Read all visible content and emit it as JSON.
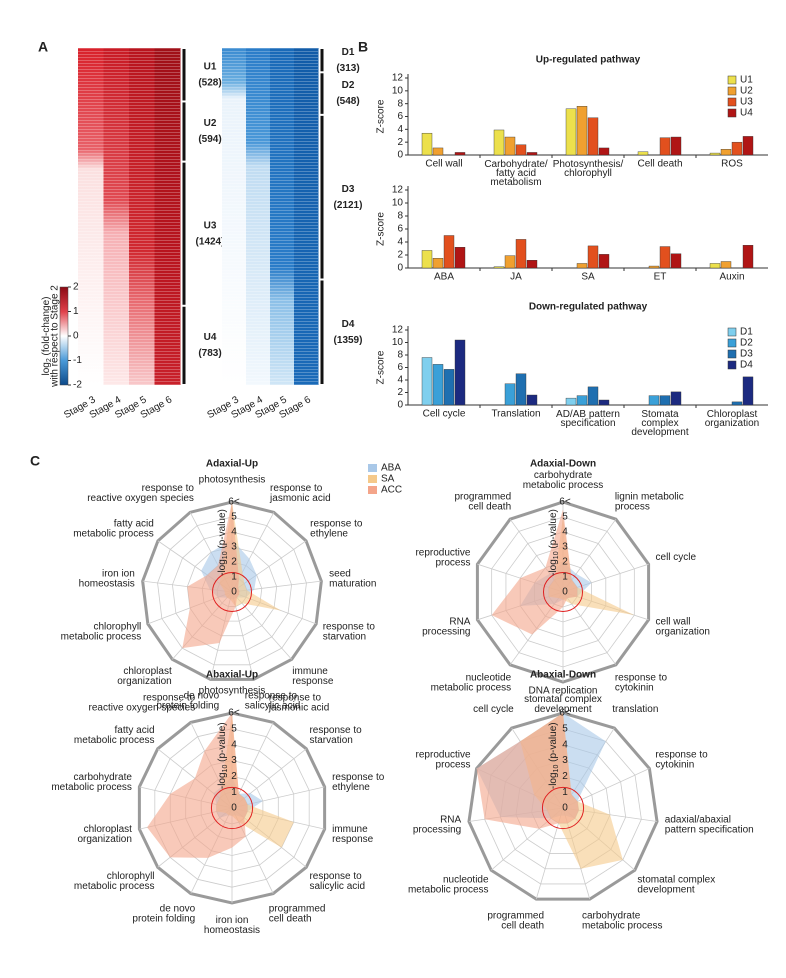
{
  "panels": [
    "A",
    "B",
    "C"
  ],
  "chart_data": [
    {
      "type": "heatmap",
      "color": "#c8102e",
      "label_color": "#d42a3a",
      "categories": [
        "Stage 3",
        "Stage 4",
        "Stage 5",
        "Stage 6"
      ],
      "clusters": [
        {
          "name": "U1",
          "size": 528,
          "size_label": "(528)"
        },
        {
          "name": "U2",
          "size": 594,
          "size_label": "(594)"
        },
        {
          "name": "U3",
          "size": 1424,
          "size_label": "(1424)"
        },
        {
          "name": "U4",
          "size": 783,
          "size_label": "(783)"
        }
      ],
      "colorbar": {
        "lim": [
          -2,
          2
        ],
        "ticks": [
          2,
          1,
          0,
          -1,
          -2
        ],
        "label": [
          "log",
          "2",
          " (fold-change)"
        ],
        "label2": "with respect to Stage 2"
      }
    },
    {
      "type": "heatmap",
      "color": "#1f6fb5",
      "label_color": "#3b4aa0",
      "categories": [
        "Stage 3",
        "Stage 4",
        "Stage 5",
        "Stage 6"
      ],
      "clusters": [
        {
          "name": "D1",
          "size": 313,
          "size_label": "(313)"
        },
        {
          "name": "D2",
          "size": 548,
          "size_label": "(548)"
        },
        {
          "name": "D3",
          "size": 2121,
          "size_label": "(2121)"
        },
        {
          "name": "D4",
          "size": 1359,
          "size_label": "(1359)"
        }
      ]
    },
    {
      "type": "bar",
      "title": "Up-regulated pathway",
      "title_color": "#e0303a",
      "ylabel": "Z-score",
      "label_color": "#e0303a",
      "ylim": [
        0,
        12
      ],
      "yticks": [
        0,
        2,
        4,
        6,
        8,
        10,
        12
      ],
      "categories": [
        "Cell wall",
        "Carbohydrate/\nfatty acid\nmetabolism",
        "Photosynthesis/\nchlorophyll",
        "Cell death",
        "ROS"
      ],
      "series": [
        {
          "name": "U1",
          "color": "#ece04c",
          "values": [
            3.4,
            3.9,
            7.2,
            0.5,
            0.3
          ]
        },
        {
          "name": "U2",
          "color": "#f0a030",
          "values": [
            1.1,
            2.8,
            7.6,
            0,
            0.9
          ]
        },
        {
          "name": "U3",
          "color": "#e2501e",
          "values": [
            0,
            1.6,
            5.8,
            2.7,
            2.0
          ]
        },
        {
          "name": "U4",
          "color": "#b01515",
          "values": [
            0.4,
            0.4,
            1.1,
            2.8,
            2.9
          ]
        }
      ]
    },
    {
      "type": "bar",
      "ylabel": "Z-score",
      "label_color": "#e0303a",
      "ylim": [
        0,
        12
      ],
      "yticks": [
        0,
        2,
        4,
        6,
        8,
        10,
        12
      ],
      "categories": [
        "ABA",
        "JA",
        "SA",
        "ET",
        "Auxin"
      ],
      "series": [
        {
          "color": "#ece04c",
          "values": [
            2.7,
            0.2,
            0,
            0,
            0.7
          ]
        },
        {
          "color": "#f0a030",
          "values": [
            1.5,
            1.9,
            0.7,
            0.3,
            1.0
          ]
        },
        {
          "color": "#e2501e",
          "values": [
            5.0,
            4.4,
            3.4,
            3.3,
            0
          ]
        },
        {
          "color": "#b01515",
          "values": [
            3.2,
            1.2,
            2.1,
            2.2,
            3.5
          ]
        }
      ]
    },
    {
      "type": "bar",
      "title": "Down-regulated pathway",
      "title_color": "#3b4aa0",
      "ylabel": "Z-score",
      "label_color": "#3b4aa0",
      "ylim": [
        0,
        12
      ],
      "yticks": [
        0,
        2,
        4,
        6,
        8,
        10,
        12
      ],
      "categories": [
        "Cell cycle",
        "Translation",
        "AD/AB pattern\nspecification",
        "Stomata\ncomplex\ndevelopment",
        "Chloroplast\norganization"
      ],
      "series": [
        {
          "name": "D1",
          "color": "#7fcfee",
          "values": [
            7.6,
            0,
            1.1,
            0,
            0
          ]
        },
        {
          "name": "D2",
          "color": "#3aa0d8",
          "values": [
            6.5,
            3.4,
            1.5,
            1.5,
            0
          ]
        },
        {
          "name": "D3",
          "color": "#1f6fb0",
          "values": [
            5.7,
            5.0,
            2.9,
            1.5,
            0.5
          ]
        },
        {
          "name": "D4",
          "color": "#1c2a80",
          "values": [
            10.4,
            1.6,
            0.8,
            2.1,
            4.5
          ]
        }
      ]
    },
    {
      "type": "radar",
      "title": "Adaxial-Up",
      "title_color": "#c8c020",
      "legend": true,
      "rlabel": [
        "-log",
        "10",
        " (p-value)"
      ],
      "rlim": [
        0,
        6
      ],
      "threshold": 1.3,
      "rticks": [
        0,
        1,
        2,
        3,
        4,
        5,
        {
          "value": 6,
          "label": "6<"
        }
      ],
      "categories": [
        "photosynthesis",
        "response to\njasmonic acid",
        "response to\nethylene",
        "seed\nmaturation",
        "response to\nstarvation",
        "immune\nresponse",
        "response to\nsalicylic acid",
        "de novo\nprotein folding",
        "chloroplast\norganization",
        "chlorophyll\nmetabolic process",
        "iron ion\nhomeostasis",
        "fatty acid\nmetabolic process",
        "response to\nreactive oxygen species"
      ],
      "series": [
        {
          "name": "ABA",
          "color": "#a9c8e8",
          "values": [
            3.5,
            2.5,
            2,
            1.5,
            1,
            0.5,
            0.5,
            0.5,
            0.5,
            1,
            1.5,
            2.5,
            3
          ]
        },
        {
          "name": "SA",
          "color": "#f5c98a",
          "values": [
            6,
            1.5,
            1,
            1,
            3.5,
            1,
            1,
            0.5,
            0.5,
            0.5,
            0.5,
            1,
            1.5
          ]
        },
        {
          "name": "ACC",
          "color": "#f4a58a",
          "values": [
            6,
            1,
            0.5,
            0.5,
            0.5,
            0.5,
            1,
            3.5,
            5,
            3,
            3,
            2,
            2
          ]
        }
      ]
    },
    {
      "type": "radar",
      "title": "Adaxial-Down",
      "title_color": "#6a2a90",
      "rlabel": [
        "-log",
        "10",
        " (p-value)"
      ],
      "rlim": [
        0,
        6
      ],
      "threshold": 1.3,
      "rticks": [
        0,
        1,
        2,
        3,
        4,
        5,
        {
          "value": 6,
          "label": "6<"
        }
      ],
      "categories": [
        "carbohydrate\nmetabolic process",
        "lignin metabolic\nprocess",
        "cell cycle",
        "cell wall\norganization",
        "response to\ncytokinin",
        "stomatal complex\ndevelopment",
        "nucleotide\nmetabolic process",
        "RNA\nprocessing",
        "reproductive\nprocess",
        "programmed\ncell death"
      ],
      "series": [
        {
          "name": "ABA",
          "color": "#a9c8e8",
          "values": [
            2,
            1.5,
            2,
            1,
            0.5,
            0.5,
            1,
            3,
            2,
            1.5
          ]
        },
        {
          "name": "SA",
          "color": "#f5c98a",
          "values": [
            5,
            1,
            1,
            5,
            1,
            0.5,
            0.5,
            1,
            1,
            1
          ]
        },
        {
          "name": "ACC",
          "color": "#f4a58a",
          "values": [
            5.5,
            1,
            1,
            1,
            0.5,
            1,
            3.5,
            5,
            3,
            2
          ]
        }
      ]
    },
    {
      "type": "radar",
      "title": "Abaxial-Up",
      "title_color": "#c8c020",
      "rlabel": [
        "-log",
        "10",
        " (p-value)"
      ],
      "rlim": [
        0,
        6
      ],
      "threshold": 1.3,
      "rticks": [
        0,
        1,
        2,
        3,
        4,
        5,
        {
          "value": 6,
          "label": "6<"
        }
      ],
      "categories": [
        "photosynthesis",
        "response to\njasmonic acid",
        "response to\nstarvation",
        "response to\nethylene",
        "immune\nresponse",
        "response to\nsalicylic acid",
        "programmed\ncell death",
        "iron ion\nhomeostasis",
        "de novo\nprotein folding",
        "chlorophyll\nmetabolic process",
        "chloroplast\norganization",
        "carbohydrate\nmetabolic process",
        "fatty acid\nmetabolic process",
        "response to\nreactive oxygen species"
      ],
      "series": [
        {
          "name": "ABA",
          "color": "#a9c8e8",
          "values": [
            2,
            1,
            1.5,
            2,
            1,
            1,
            0.5,
            0.5,
            0.5,
            1,
            1,
            1,
            1.5,
            1.5
          ]
        },
        {
          "name": "SA",
          "color": "#f5c98a",
          "values": [
            6,
            1,
            1,
            1,
            4,
            4,
            1,
            0.5,
            0.5,
            0.5,
            1,
            1,
            1,
            1.5
          ]
        },
        {
          "name": "ACC",
          "color": "#f4a58a",
          "values": [
            6,
            1,
            1,
            1,
            1,
            1,
            2,
            2.5,
            3.5,
            5,
            5.5,
            4,
            3,
            4
          ]
        }
      ]
    },
    {
      "type": "radar",
      "title": "Abaxial-Down",
      "title_color": "#6a2a90",
      "rlabel": [
        "-log",
        "10",
        " (p-value)"
      ],
      "rlim": [
        0,
        6
      ],
      "threshold": 1.3,
      "rticks": [
        0,
        1,
        2,
        3,
        4,
        5,
        {
          "value": 6,
          "label": "6<"
        }
      ],
      "categories": [
        "DNA replication",
        "translation",
        "response to\ncytokinin",
        "adaxial/abaxial\npattern specification",
        "stomatal complex\ndevelopment",
        "carbohydrate\nmetabolic process",
        "programmed\ncell death",
        "nucleotide\nmetabolic process",
        "RNA\nprocessing",
        "reproductive\nprocess",
        "cell cycle"
      ],
      "series": [
        {
          "name": "ABA",
          "color": "#a9c8e8",
          "values": [
            6,
            5,
            1,
            1,
            1,
            0.5,
            0.5,
            1,
            4,
            6,
            5
          ]
        },
        {
          "name": "SA",
          "color": "#f5c98a",
          "values": [
            6,
            1,
            1,
            3,
            5,
            4,
            1,
            1,
            1,
            2,
            5
          ]
        },
        {
          "name": "ACC",
          "color": "#f4a58a",
          "values": [
            6,
            1,
            1,
            1,
            1,
            1,
            1,
            2,
            5,
            6,
            5
          ]
        }
      ]
    }
  ]
}
